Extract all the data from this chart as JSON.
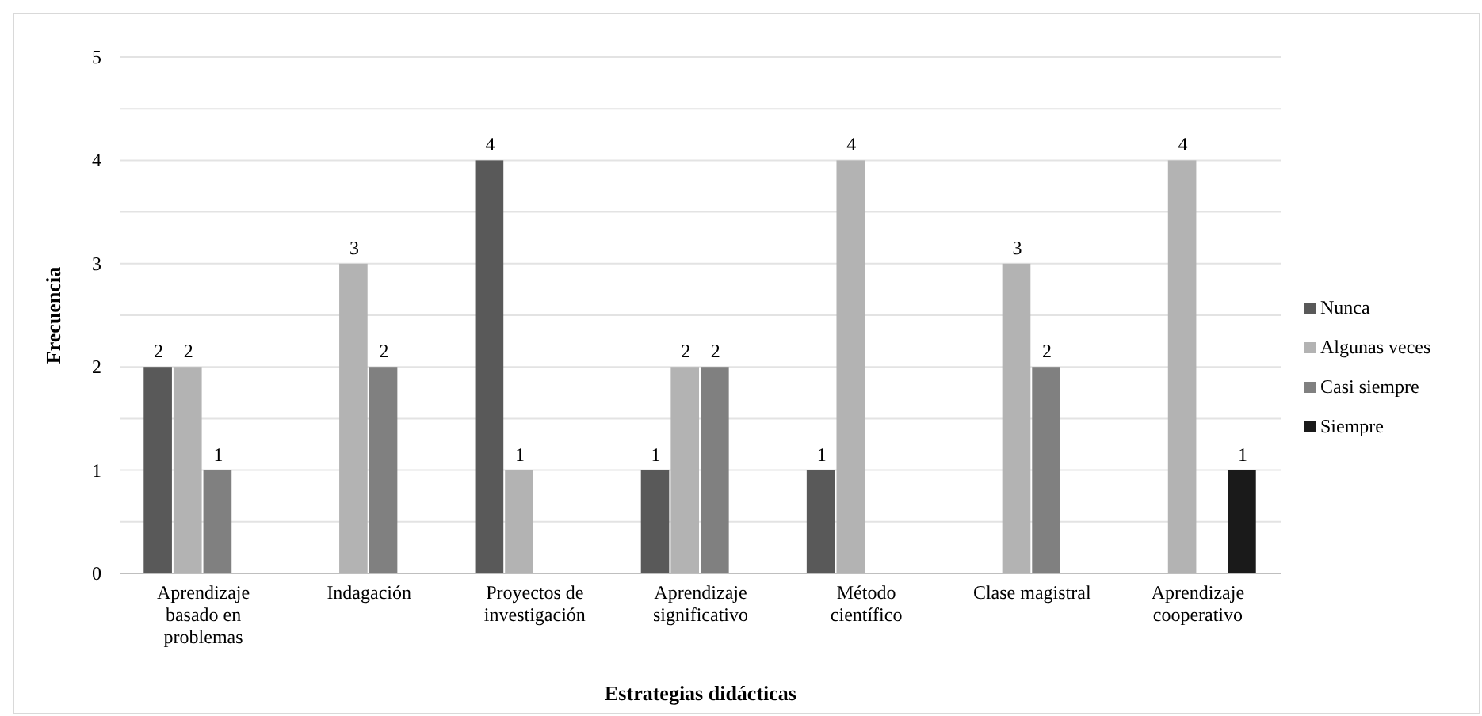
{
  "chart_data": {
    "type": "bar",
    "xlabel": "Estrategias didácticas",
    "ylabel": "Frecuencia",
    "categories": [
      "Aprendizaje basado en problemas",
      "Indagación",
      "Proyectos de investigación",
      "Aprendizaje significativo",
      "Método científico",
      "Clase magistral",
      "Aprendizaje cooperativo"
    ],
    "series": [
      {
        "name": "Nunca",
        "color": "#595959",
        "values": [
          2,
          null,
          4,
          1,
          1,
          null,
          null
        ]
      },
      {
        "name": "Algunas veces",
        "color": "#b3b3b3",
        "values": [
          2,
          3,
          1,
          2,
          4,
          3,
          4
        ]
      },
      {
        "name": "Casi siempre",
        "color": "#808080",
        "values": [
          1,
          2,
          null,
          2,
          null,
          2,
          null
        ]
      },
      {
        "name": "Siempre",
        "color": "#1a1a1a",
        "values": [
          null,
          null,
          null,
          null,
          null,
          null,
          1
        ]
      }
    ],
    "ylim": [
      0,
      5
    ],
    "yticks": [
      0,
      {
        "value": 0.5,
        "label": null
      },
      1,
      {
        "value": 1.5,
        "label": null
      },
      2,
      {
        "value": 2.5,
        "label": null
      },
      3,
      {
        "value": 3.5,
        "label": null
      },
      4,
      {
        "value": 4.5,
        "label": null
      },
      5
    ],
    "grid": "y",
    "legend": "right",
    "data_labels": true
  }
}
